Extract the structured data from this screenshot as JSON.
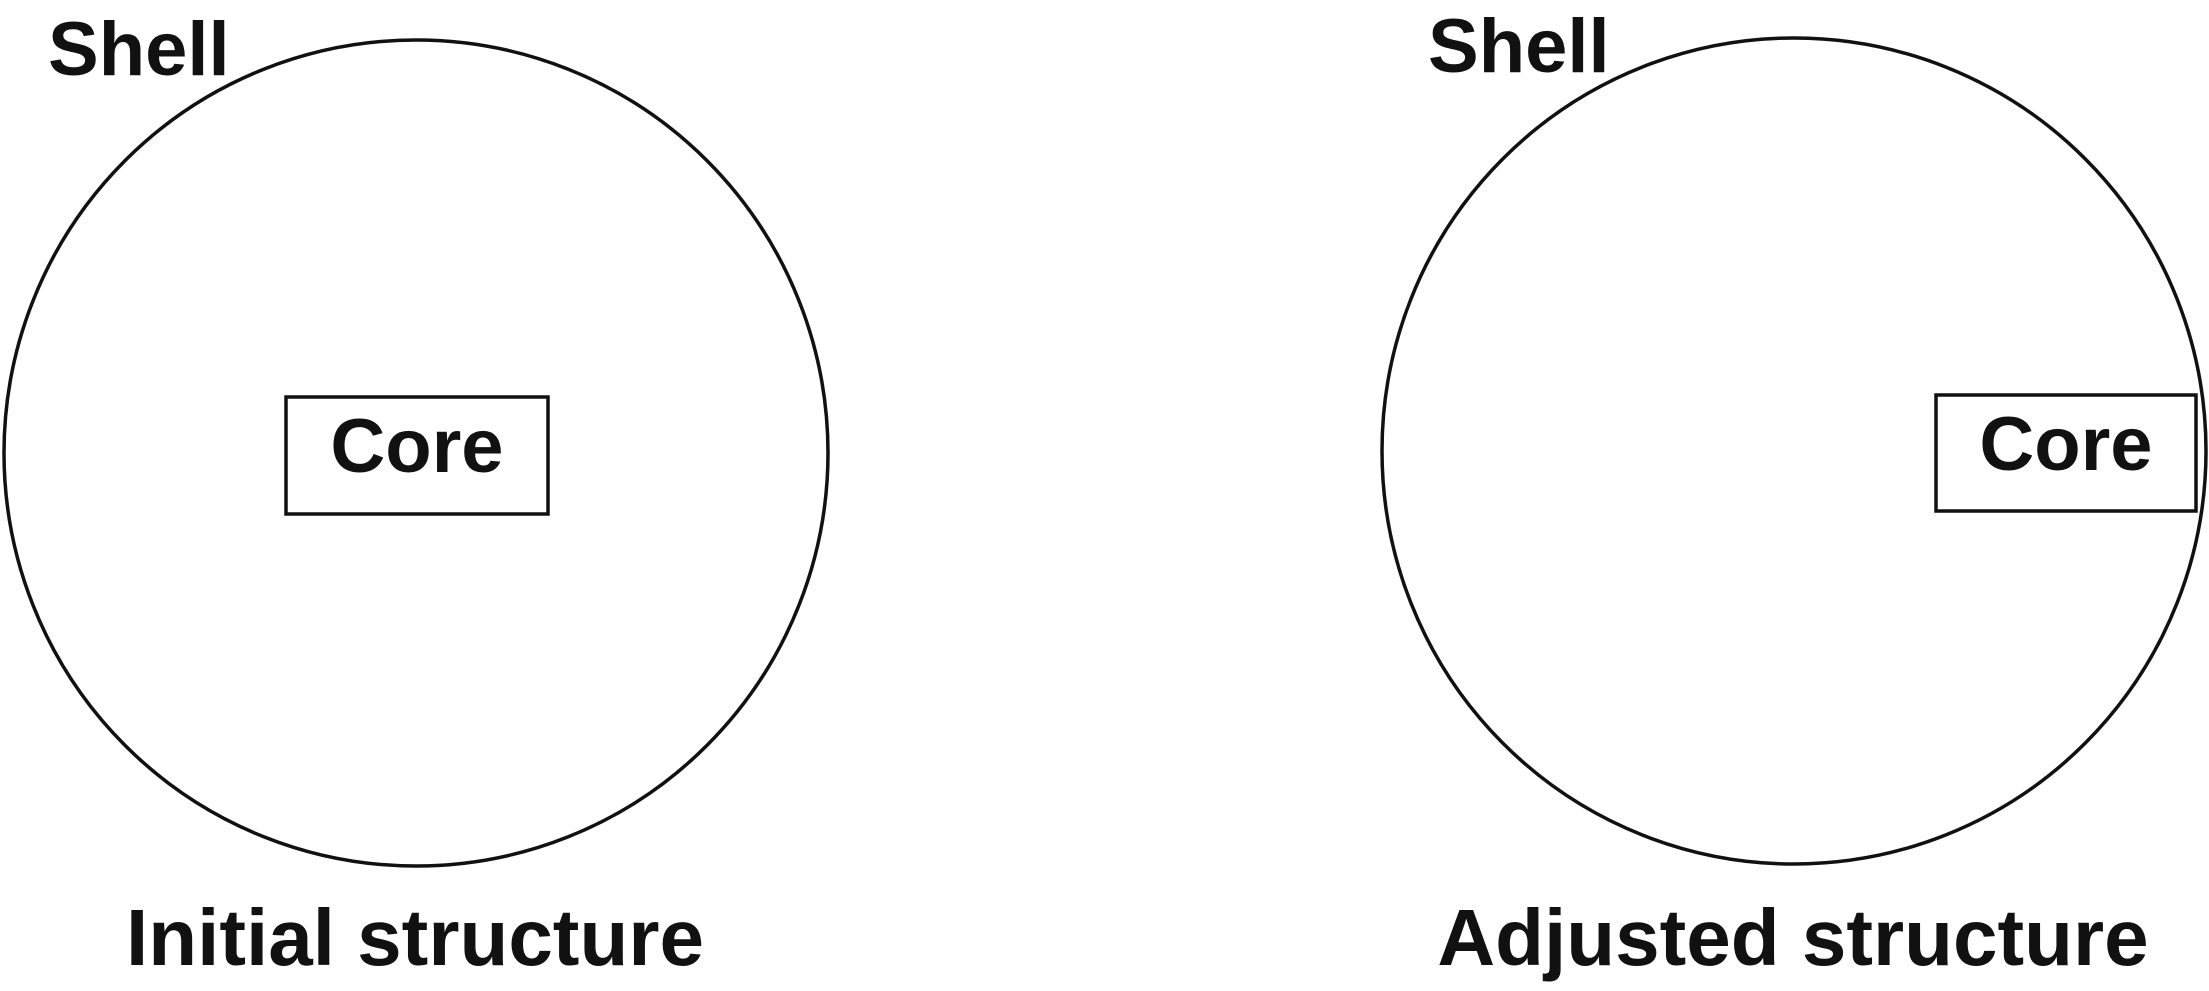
{
  "panels": [
    {
      "shell_label": "Shell",
      "core_label": "Core",
      "caption": "Initial structure"
    },
    {
      "shell_label": "Shell",
      "core_label": "Core",
      "caption": "Adjusted structure"
    }
  ],
  "colors": {
    "stroke": "#111111",
    "text": "#111111",
    "background": "#ffffff"
  }
}
